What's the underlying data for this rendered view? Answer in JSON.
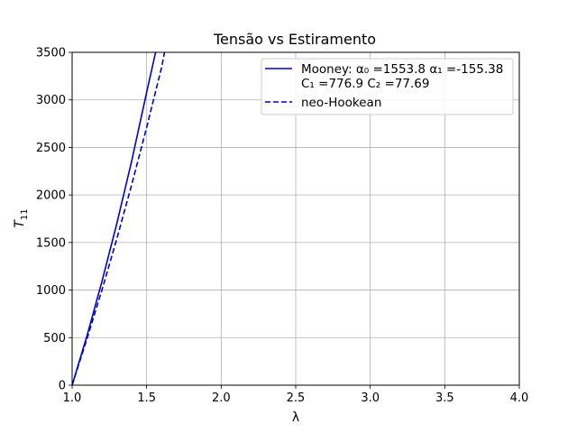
{
  "chart_data": {
    "type": "line",
    "title": "Tensão vs Estiramento",
    "xlabel": "λ",
    "ylabel": "T",
    "ylabel_sub": "11",
    "xlim": [
      1.0,
      4.0
    ],
    "ylim": [
      0,
      3500
    ],
    "xticks": [
      "1.0",
      "1.5",
      "2.0",
      "2.5",
      "3.0",
      "3.5",
      "4.0"
    ],
    "yticks": [
      "0",
      "500",
      "1000",
      "1500",
      "2000",
      "2500",
      "3000",
      "3500"
    ],
    "grid": true,
    "legend_position": "top-right",
    "series": [
      {
        "name_line1": "Mooney: α₀ =1553.8 α₁ =-155.38",
        "name_line2": "C₁ =776.9 C₂ =77.69",
        "color": "#0000cc",
        "dash": "solid",
        "x": [
          1.0,
          1.1,
          1.2,
          1.3,
          1.4,
          1.5,
          1.56
        ],
        "y": [
          0,
          520,
          1090,
          1700,
          2360,
          3080,
          3500
        ]
      },
      {
        "name": "neo-Hookean",
        "color": "#0000cc",
        "dash": "dashed",
        "x": [
          1.0,
          1.1,
          1.2,
          1.3,
          1.4,
          1.5,
          1.6,
          1.62
        ],
        "y": [
          0,
          490,
          1000,
          1540,
          2110,
          2710,
          3340,
          3500
        ]
      }
    ]
  }
}
